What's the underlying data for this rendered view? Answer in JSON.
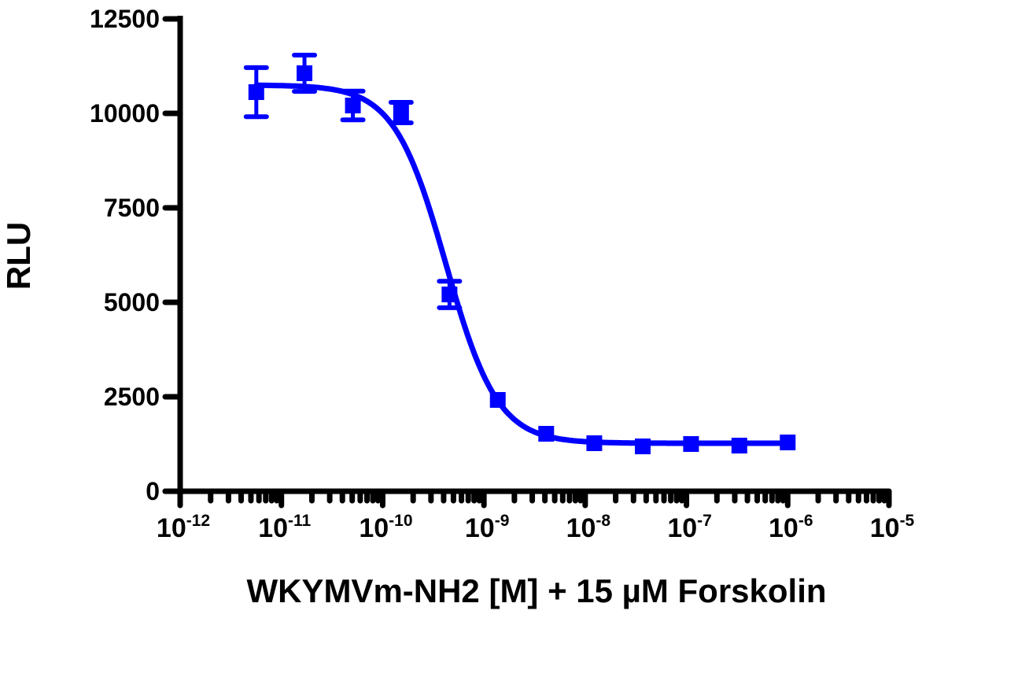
{
  "chart_data": {
    "type": "scatter",
    "title": "",
    "xlabel": "WKYMVm-NH2 [M] + 15 µM Forskolin",
    "ylabel": "RLU",
    "x_scale": "log",
    "xlim": [
      1e-12,
      1e-05
    ],
    "ylim": [
      0,
      12500
    ],
    "grid": false,
    "legend": "none",
    "color": "#0000ff",
    "y_ticks": [
      "0",
      "2500",
      "5000",
      "7500",
      "10000",
      "12500"
    ],
    "x_ticks": [
      {
        "base": "10",
        "exp": "-12"
      },
      {
        "base": "10",
        "exp": "-11"
      },
      {
        "base": "10",
        "exp": "-10"
      },
      {
        "base": "10",
        "exp": "-9"
      },
      {
        "base": "10",
        "exp": "-8"
      },
      {
        "base": "10",
        "exp": "-7"
      },
      {
        "base": "10",
        "exp": "-6"
      },
      {
        "base": "10",
        "exp": "-5"
      }
    ],
    "series": [
      {
        "marker": "square",
        "x": [
          5.65e-12,
          1.69e-11,
          5.08e-11,
          1.52e-10,
          4.57e-10,
          1.37e-09,
          4.12e-09,
          1.23e-08,
          3.7e-08,
          1.11e-07,
          3.33e-07,
          1e-06
        ],
        "y": [
          10562,
          11062,
          10208,
          10021,
          5208,
          2417,
          1521,
          1271,
          1187,
          1250,
          1208,
          1292
        ],
        "error": [
          650,
          480,
          380,
          270,
          350,
          0,
          0,
          0,
          0,
          0,
          0,
          0
        ]
      }
    ],
    "fit": {
      "model": "sigmoidal dose-response",
      "top": 10750,
      "bottom": 1270,
      "logIC50": -9.375,
      "hill_slope": -1.7
    }
  }
}
